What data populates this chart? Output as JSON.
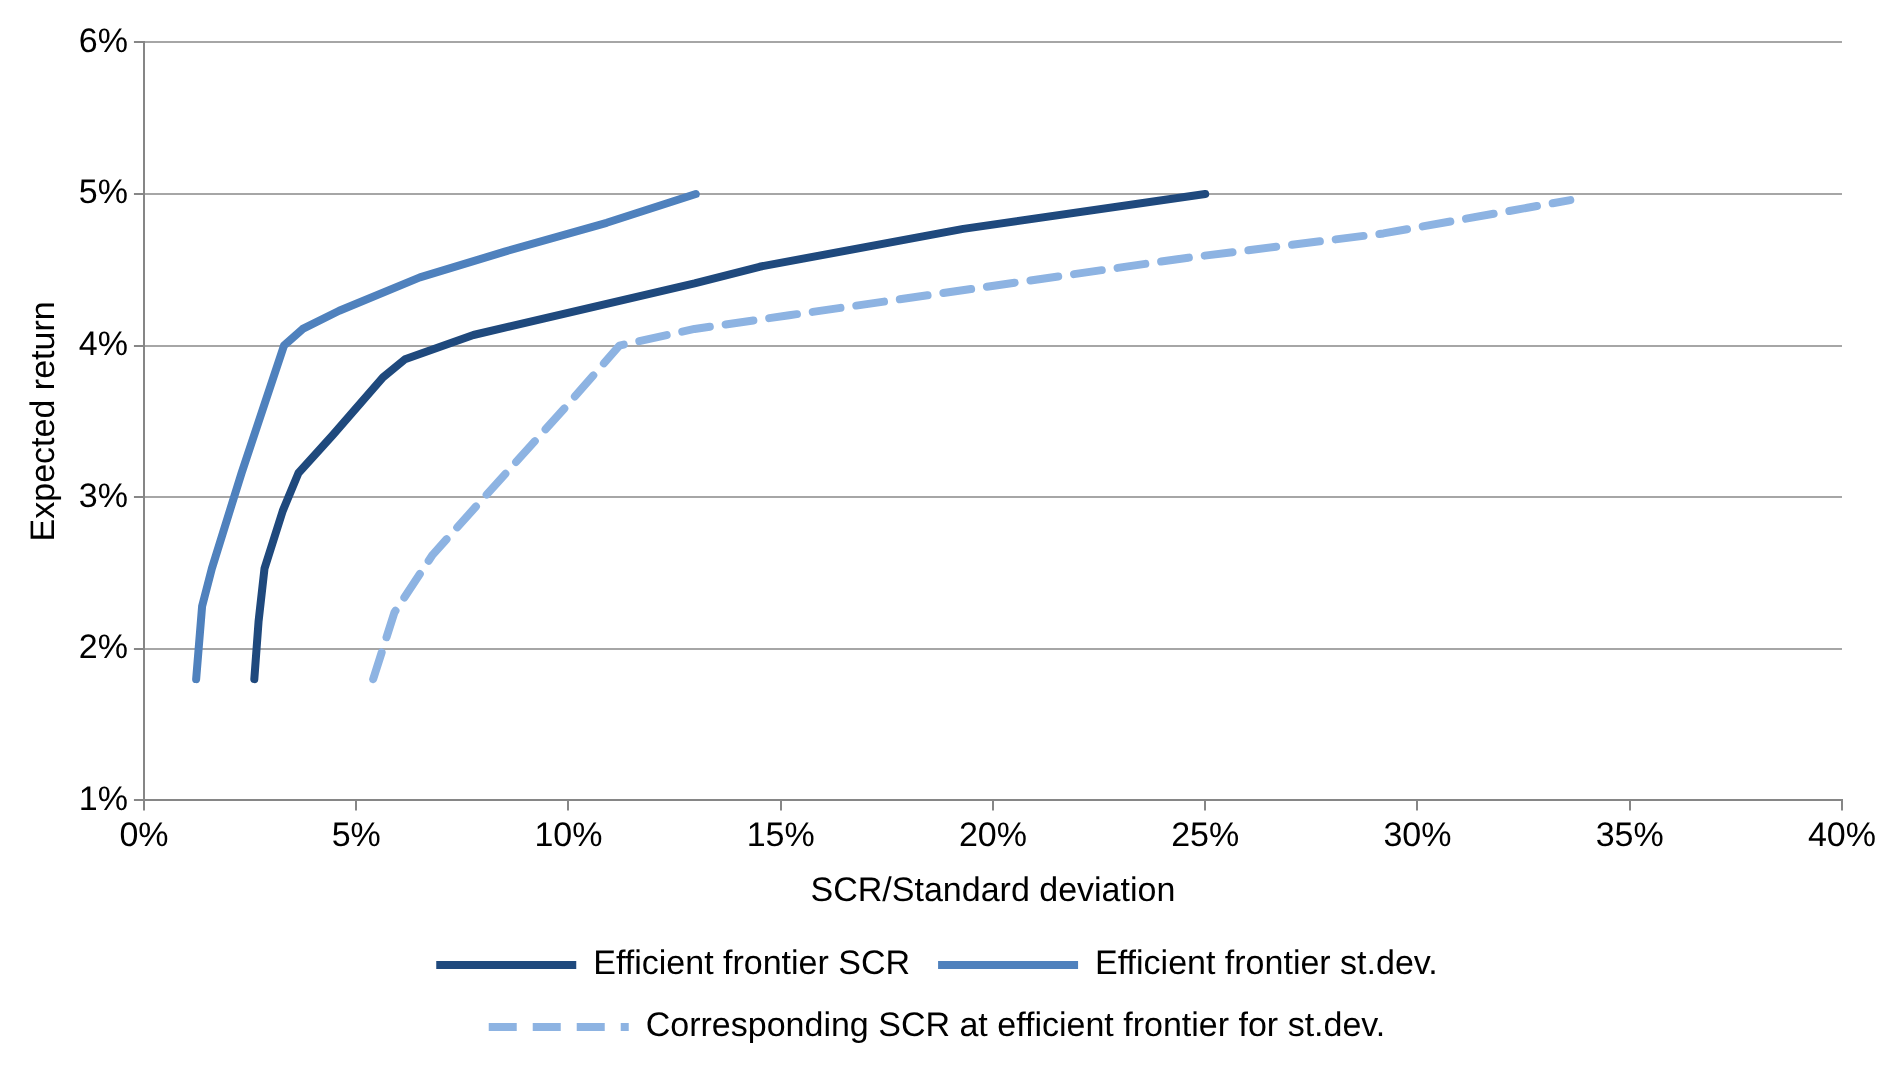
{
  "chart_data": {
    "type": "line",
    "xlabel": "SCR/Standard deviation",
    "ylabel": "Expected return",
    "xlim": [
      0,
      40
    ],
    "xticks": [
      {
        "value": 0,
        "label": "0%"
      },
      {
        "value": 5,
        "label": "5%"
      },
      {
        "value": 10,
        "label": "10%"
      },
      {
        "value": 15,
        "label": "15%"
      },
      {
        "value": 20,
        "label": "20%"
      },
      {
        "value": 25,
        "label": "25%"
      },
      {
        "value": 30,
        "label": "30%"
      },
      {
        "value": 35,
        "label": "35%"
      },
      {
        "value": 40,
        "label": "40%"
      }
    ],
    "ylim": [
      1,
      6
    ],
    "yticks": [
      {
        "value": 1,
        "label": "1%"
      },
      {
        "value": 2,
        "label": "2%"
      },
      {
        "value": 3,
        "label": "3%"
      },
      {
        "value": 4,
        "label": "4%"
      },
      {
        "value": 5,
        "label": "5%"
      },
      {
        "value": 6,
        "label": "6%"
      }
    ],
    "grid": "y",
    "legend": "bottom",
    "marker": "none",
    "series": [
      {
        "name": "Efficient frontier SCR",
        "color": "#1f497d",
        "line_style": "solid",
        "x": [
          2.6,
          2.7,
          2.84,
          3.27,
          3.64,
          4.45,
          5.63,
          6.15,
          7.76,
          12.97,
          14.5,
          19.3,
          25
        ],
        "values": [
          1.8,
          2.18,
          2.53,
          2.91,
          3.16,
          3.41,
          3.79,
          3.91,
          4.07,
          4.41,
          4.52,
          4.77,
          5.0
        ]
      },
      {
        "name": "Efficient frontier st.dev.",
        "color": "#4f81bd",
        "line_style": "solid",
        "x": [
          1.23,
          1.37,
          1.6,
          2.3,
          3.3,
          3.74,
          4.6,
          6.5,
          8.5,
          10.9,
          13.0
        ],
        "values": [
          1.8,
          2.28,
          2.53,
          3.16,
          4.0,
          4.11,
          4.23,
          4.45,
          4.62,
          4.81,
          5.0
        ]
      },
      {
        "name": "Corresponding SCR at efficient frontier for st.dev.",
        "color": "#8db3e2",
        "line_style": "dashed",
        "x": [
          5.4,
          5.9,
          6.8,
          8.05,
          9.95,
          11.2,
          12.97,
          15.2,
          24.6,
          29.2,
          33.6
        ],
        "values": [
          1.8,
          2.24,
          2.62,
          3.01,
          3.6,
          4.0,
          4.11,
          4.2,
          4.58,
          4.74,
          4.96
        ]
      }
    ]
  }
}
